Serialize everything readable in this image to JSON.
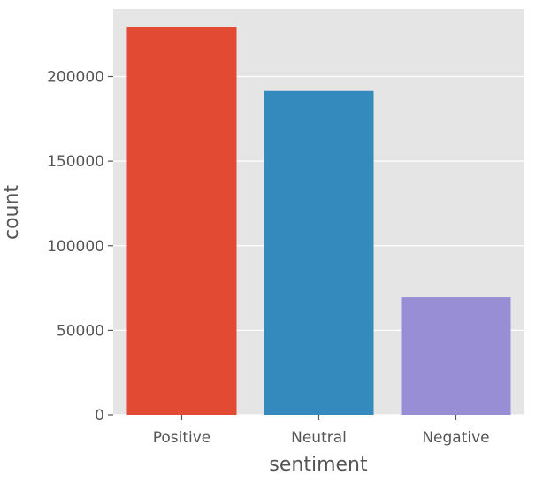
{
  "chart_data": {
    "type": "bar",
    "title": "",
    "xlabel": "sentiment",
    "ylabel": "count",
    "categories": [
      "Positive",
      "Neutral",
      "Negative"
    ],
    "values": [
      229500,
      191500,
      69500
    ],
    "colors": [
      "#E24A33",
      "#348ABD",
      "#988ED5"
    ],
    "ylim": [
      0,
      240000
    ],
    "yticks": [
      0,
      50000,
      100000,
      150000,
      200000
    ],
    "ytick_labels": [
      "0",
      "50000",
      "100000",
      "150000",
      "200000"
    ],
    "grid": true,
    "style": "ggplot"
  }
}
